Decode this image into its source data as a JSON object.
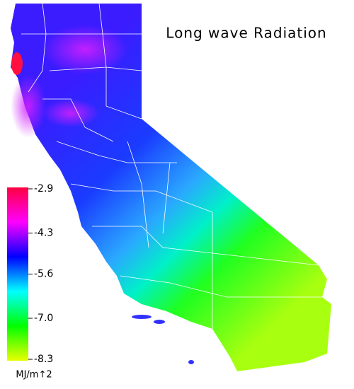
{
  "map": {
    "title": "Long wave Radiation",
    "colorbar": {
      "lim": [
        -8.3,
        -2.9
      ],
      "ticks": [
        -2.9,
        -4.3,
        -5.6,
        {
          "value": -7,
          "label": "-7.0"
        },
        -8.3
      ],
      "colors": [
        "#e8ff00",
        "#00ff00",
        "#00ffff",
        "#0000ff",
        "#ff00ff",
        "#ff0040"
      ],
      "label": "MJ/m↑2"
    }
  }
}
